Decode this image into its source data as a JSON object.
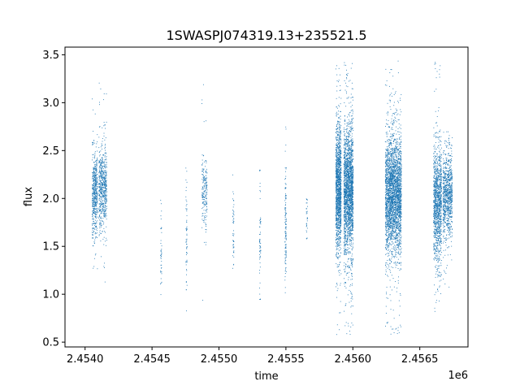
{
  "chart_data": {
    "type": "scatter",
    "title": "1SWASPJ074319.13+235521.5",
    "xlabel": "time",
    "ylabel": "flux",
    "x_offset_label": "1e6",
    "xlim": [
      2.45385,
      2.45686
    ],
    "ylim": [
      0.45,
      3.58
    ],
    "x_ticks": [
      2.454,
      2.4545,
      2.455,
      2.4555,
      2.456,
      2.4565
    ],
    "x_tick_labels": [
      "2.4540",
      "2.4545",
      "2.4550",
      "2.4555",
      "2.4560",
      "2.4565"
    ],
    "y_ticks": [
      0.5,
      1.0,
      1.5,
      2.0,
      2.5,
      3.0,
      3.5
    ],
    "y_tick_labels": [
      "0.5",
      "1.0",
      "1.5",
      "2.0",
      "2.5",
      "3.0",
      "3.5"
    ],
    "grid": false,
    "marker_color": "#1f77b4",
    "series": [
      {
        "clusters": [
          {
            "x_start": 2.45405,
            "x_end": 2.45409,
            "y_center": 2.05,
            "y_spread": 0.22,
            "y_min": 1.15,
            "y_max": 3.1,
            "count": 520
          },
          {
            "x_start": 2.4541,
            "x_end": 2.45416,
            "y_center": 2.1,
            "y_spread": 0.22,
            "y_min": 1.1,
            "y_max": 3.3,
            "count": 620
          },
          {
            "x_start": 2.45456,
            "x_end": 2.45457,
            "y_center": 1.45,
            "y_spread": 0.25,
            "y_min": 1.0,
            "y_max": 2.25,
            "count": 40
          },
          {
            "x_start": 2.45475,
            "x_end": 2.45476,
            "y_center": 1.6,
            "y_spread": 0.3,
            "y_min": 0.83,
            "y_max": 2.4,
            "count": 60
          },
          {
            "x_start": 2.45487,
            "x_end": 2.45491,
            "y_center": 2.1,
            "y_spread": 0.18,
            "y_min": 0.9,
            "y_max": 3.22,
            "count": 200
          },
          {
            "x_start": 2.4551,
            "x_end": 2.45511,
            "y_center": 1.65,
            "y_spread": 0.25,
            "y_min": 1.05,
            "y_max": 2.25,
            "count": 50
          },
          {
            "x_start": 2.4553,
            "x_end": 2.45531,
            "y_center": 1.6,
            "y_spread": 0.3,
            "y_min": 0.95,
            "y_max": 2.3,
            "count": 60
          },
          {
            "x_start": 2.45549,
            "x_end": 2.4555,
            "y_center": 1.7,
            "y_spread": 0.3,
            "y_min": 1.02,
            "y_max": 2.75,
            "count": 130
          },
          {
            "x_start": 2.45565,
            "x_end": 2.45566,
            "y_center": 1.8,
            "y_spread": 0.15,
            "y_min": 1.3,
            "y_max": 2.05,
            "count": 30
          },
          {
            "x_start": 2.45587,
            "x_end": 2.45591,
            "y_center": 2.1,
            "y_spread": 0.33,
            "y_min": 0.58,
            "y_max": 3.45,
            "count": 1500
          },
          {
            "x_start": 2.45593,
            "x_end": 2.456,
            "y_center": 2.1,
            "y_spread": 0.33,
            "y_min": 0.58,
            "y_max": 3.45,
            "count": 2200
          },
          {
            "x_start": 2.45624,
            "x_end": 2.45636,
            "y_center": 2.05,
            "y_spread": 0.3,
            "y_min": 0.58,
            "y_max": 3.45,
            "count": 3000
          },
          {
            "x_start": 2.4566,
            "x_end": 2.45666,
            "y_center": 1.95,
            "y_spread": 0.3,
            "y_min": 0.6,
            "y_max": 3.43,
            "count": 1200
          },
          {
            "x_start": 2.45667,
            "x_end": 2.45674,
            "y_center": 2.05,
            "y_spread": 0.22,
            "y_min": 1.05,
            "y_max": 2.7,
            "count": 900
          }
        ]
      }
    ]
  }
}
